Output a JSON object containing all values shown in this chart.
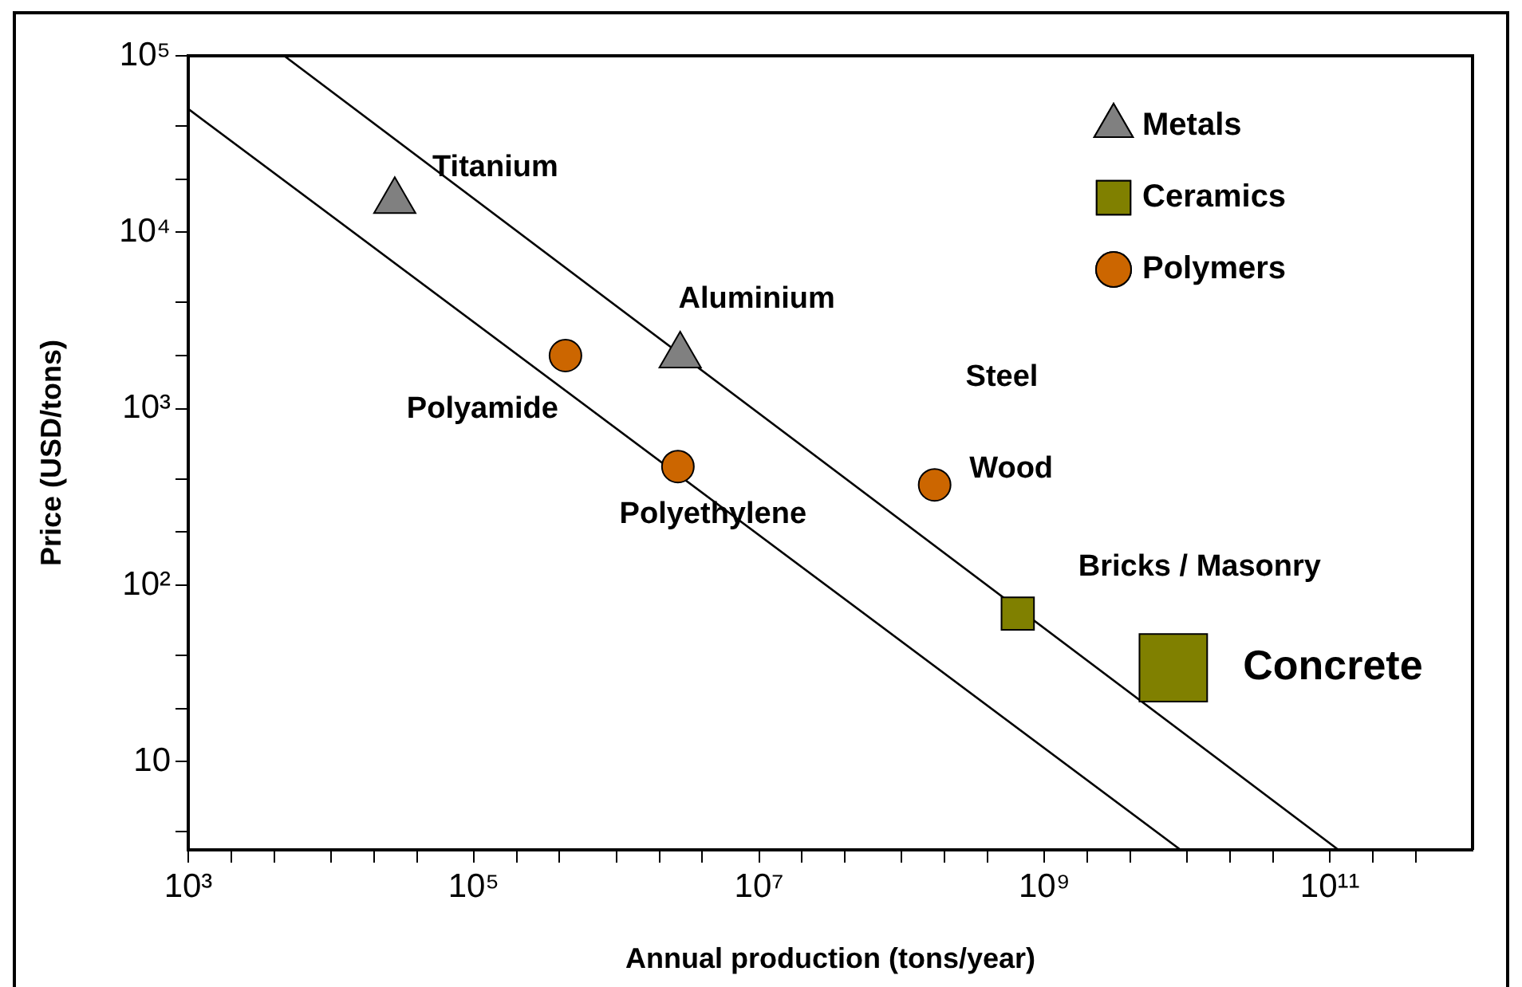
{
  "chart_data": {
    "type": "scatter",
    "xlabel": "Annual production (tons/year)",
    "ylabel": "Price (USD/tons)",
    "xlim": [
      1000,
      1000000000000
    ],
    "ylim": [
      3.16,
      100000
    ],
    "xticks": [
      {
        "value": 1000,
        "label": "10³"
      },
      {
        "value": 2000,
        "label": null
      },
      {
        "value": 4000,
        "label": null
      },
      {
        "value": 10000,
        "label": null
      },
      {
        "value": 20000,
        "label": null
      },
      {
        "value": 40000,
        "label": null
      },
      {
        "value": 100000,
        "label": "10⁵"
      },
      {
        "value": 200000,
        "label": null
      },
      {
        "value": 400000,
        "label": null
      },
      {
        "value": 1000000,
        "label": null
      },
      {
        "value": 2000000,
        "label": null
      },
      {
        "value": 4000000,
        "label": null
      },
      {
        "value": 10000000,
        "label": "10⁷"
      },
      {
        "value": 20000000,
        "label": null
      },
      {
        "value": 40000000,
        "label": null
      },
      {
        "value": 100000000,
        "label": null
      },
      {
        "value": 200000000,
        "label": null
      },
      {
        "value": 400000000,
        "label": null
      },
      {
        "value": 1000000000,
        "label": "10⁹"
      },
      {
        "value": 2000000000,
        "label": null
      },
      {
        "value": 4000000000,
        "label": null
      },
      {
        "value": 10000000000,
        "label": null
      },
      {
        "value": 20000000000,
        "label": null
      },
      {
        "value": 40000000000,
        "label": null
      },
      {
        "value": 100000000000,
        "label": "10¹¹"
      },
      {
        "value": 200000000000,
        "label": null
      },
      {
        "value": 400000000000,
        "label": null
      }
    ],
    "yticks": [
      {
        "value": 4,
        "label": null
      },
      {
        "value": 10,
        "label": "10"
      },
      {
        "value": 20,
        "label": null
      },
      {
        "value": 40,
        "label": null
      },
      {
        "value": 100,
        "label": "10²"
      },
      {
        "value": 200,
        "label": null
      },
      {
        "value": 400,
        "label": null
      },
      {
        "value": 1000,
        "label": "10³"
      },
      {
        "value": 2000,
        "label": null
      },
      {
        "value": 4000,
        "label": null
      },
      {
        "value": 10000,
        "label": "10⁴"
      },
      {
        "value": 20000,
        "label": null
      },
      {
        "value": 40000,
        "label": null
      },
      {
        "value": 100000,
        "label": "10⁵"
      }
    ],
    "log": "xy",
    "grid": false,
    "legend": "top right",
    "series": [
      {
        "name": "Metals",
        "color": "#808080",
        "marker": "triangle",
        "x": [
          28000,
          2800000
        ],
        "values": [
          15000,
          2000
        ]
      },
      {
        "name": "Ceramics",
        "color": "#808000",
        "marker": "square",
        "x": [
          650000000,
          8000000000
        ],
        "values": [
          69,
          34
        ],
        "sizes": [
          0.23,
          1
        ]
      },
      {
        "name": "Polymers",
        "color": "#cc6600",
        "marker": "circle",
        "x": [
          440000,
          2700000,
          170000000
        ],
        "values": [
          2000,
          470,
          370
        ]
      },
      {
        "type": "line",
        "color": "#000000",
        "x": [
          4700,
          115000000000
        ],
        "values": [
          100000,
          3.16
        ]
      },
      {
        "type": "line",
        "color": "#000000",
        "x": [
          1000,
          9000000000
        ],
        "values": [
          50000,
          3.16
        ]
      }
    ],
    "annotations": [
      {
        "text": "Titanium",
        "x": 28000,
        "y": 15000
      },
      {
        "text": "Aluminium",
        "x": 2800000,
        "y": 2000
      },
      {
        "text": "Polyamide",
        "x": 440000,
        "y": 2000
      },
      {
        "text": "Polyethylene",
        "x": 2700000,
        "y": 470
      },
      "Steel",
      {
        "text": "Wood",
        "x": 170000000,
        "y": 370
      },
      {
        "text": "Bricks / Masonry",
        "x": 650000000,
        "y": 69
      },
      {
        "text": "Concrete",
        "x": 8000000000,
        "y": 34
      }
    ]
  }
}
